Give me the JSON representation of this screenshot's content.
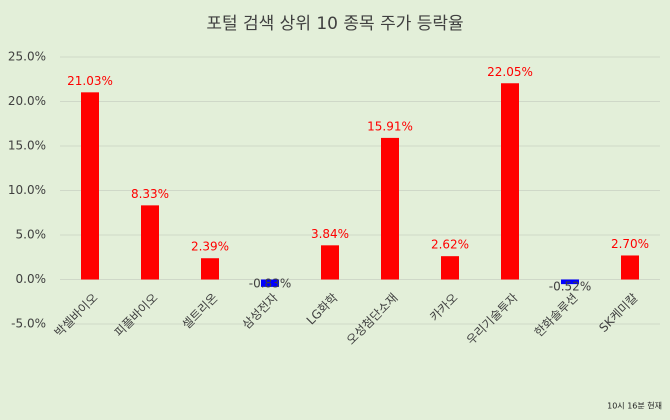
{
  "chart_data": {
    "type": "bar",
    "title": "포털 검색 상위 10 종목 주가 등락율",
    "categories": [
      "박셀바이오",
      "피플바이오",
      "셀트리온",
      "삼성전자",
      "LG화학",
      "오성첨단소재",
      "카카오",
      "우리기술투자",
      "한화솔루션",
      "SK케미칼"
    ],
    "values": [
      21.03,
      8.33,
      2.39,
      -0.83,
      3.84,
      15.91,
      2.62,
      22.05,
      -0.52,
      2.7
    ],
    "value_labels": [
      "21.03%",
      "8.33%",
      "2.39%",
      "-0.83%",
      "3.84%",
      "15.91%",
      "2.62%",
      "22.05%",
      "-0.52%",
      "2.70%"
    ],
    "colors": [
      "#ff0000",
      "#ff0000",
      "#ff0000",
      "#0000ff",
      "#ff0000",
      "#ff0000",
      "#ff0000",
      "#ff0000",
      "#0000ff",
      "#ff0000"
    ],
    "label_color": "#ff0000",
    "ylim": [
      -5,
      25
    ],
    "yticks": [
      {
        "value": -5,
        "label": "-5.0%"
      },
      {
        "value": 0,
        "label": "0.0%"
      },
      {
        "value": 5,
        "label": "5.0%"
      },
      {
        "value": 10,
        "label": "10.0%"
      },
      {
        "value": 15,
        "label": "15.0%"
      },
      {
        "value": 20,
        "label": "20.0%"
      },
      {
        "value": 25,
        "label": "25.0%"
      }
    ],
    "grid": true,
    "note": "10시  16분  현재"
  }
}
